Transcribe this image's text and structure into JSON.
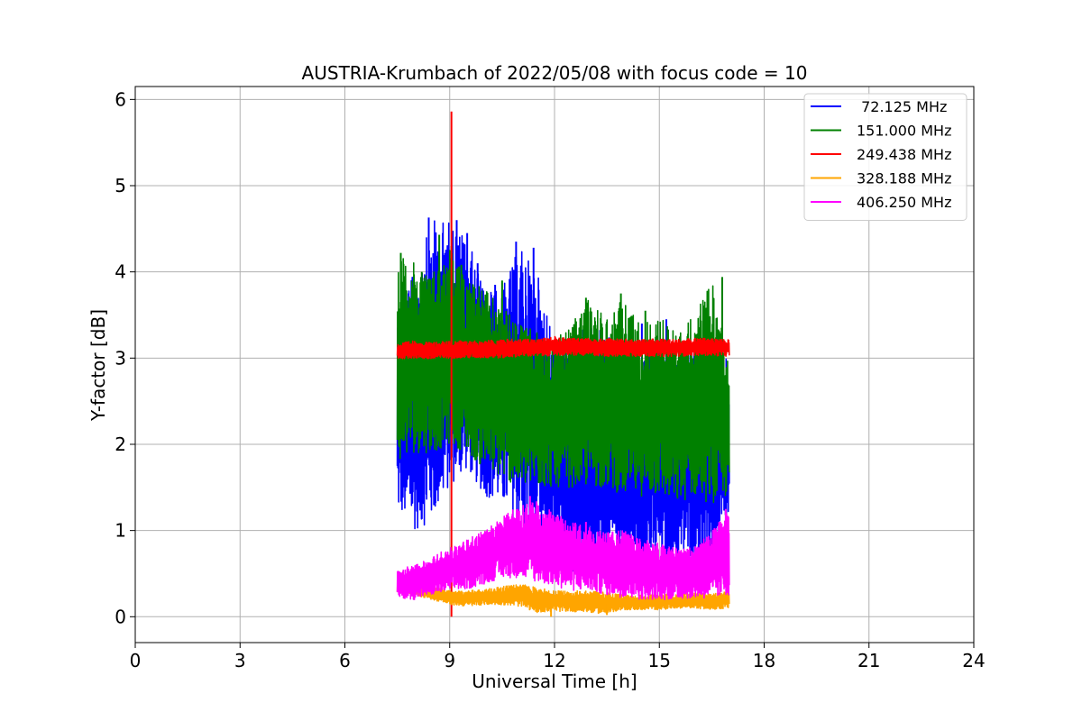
{
  "chart_data": {
    "type": "line",
    "title": "AUSTRIA-Krumbach of 2022/05/08 with focus code = 10",
    "xlabel": "Universal Time [h]",
    "ylabel": "Y-factor [dB]",
    "xlim": [
      0,
      24
    ],
    "ylim": [
      -0.3,
      6.15
    ],
    "xticks": [
      "0",
      "3",
      "6",
      "9",
      "12",
      "15",
      "18",
      "21",
      "24"
    ],
    "yticks": [
      "0",
      "1",
      "2",
      "3",
      "4",
      "5",
      "6"
    ],
    "grid": true,
    "legend_position": "top-right",
    "series": [
      {
        "name": " 72.125 MHz",
        "color": "#0000ff",
        "x": [
          7.5,
          8.0,
          8.5,
          9.0,
          9.5,
          10.0,
          10.5,
          11.0,
          11.5,
          12.0,
          12.5,
          13.0,
          13.5,
          14.0,
          14.5,
          15.0,
          15.5,
          16.0,
          16.5,
          17.0
        ],
        "low": [
          1.2,
          1.0,
          1.1,
          1.5,
          1.7,
          1.4,
          1.3,
          1.0,
          0.9,
          0.6,
          0.5,
          0.5,
          0.6,
          0.5,
          0.6,
          0.6,
          0.6,
          0.7,
          0.6,
          1.0
        ],
        "high": [
          3.6,
          4.0,
          4.6,
          4.6,
          4.4,
          3.8,
          3.8,
          4.3,
          4.0,
          3.2,
          3.2,
          3.4,
          3.3,
          3.1,
          3.0,
          3.3,
          3.0,
          3.1,
          3.0,
          3.0
        ],
        "spikes": [
          [
            8.4,
            4.63
          ],
          [
            9.2,
            4.6
          ],
          [
            9.5,
            4.45
          ],
          [
            10.9,
            4.35
          ],
          [
            11.4,
            4.28
          ],
          [
            7.7,
            3.9
          ],
          [
            8.9,
            4.1
          ],
          [
            9.8,
            4.1
          ],
          [
            10.3,
            3.85
          ],
          [
            14.5,
            3.4
          ],
          [
            15.2,
            3.45
          ],
          [
            16.4,
            3.3
          ]
        ]
      },
      {
        "name": "151.000 MHz",
        "color": "#008000",
        "x": [
          7.5,
          8.0,
          8.5,
          9.0,
          9.5,
          10.0,
          10.5,
          11.0,
          11.5,
          12.0,
          12.5,
          13.0,
          13.5,
          14.0,
          14.5,
          15.0,
          15.5,
          16.0,
          16.5,
          17.0
        ],
        "low": [
          1.8,
          1.9,
          1.9,
          2.0,
          1.9,
          1.7,
          1.6,
          1.5,
          1.5,
          1.5,
          1.5,
          1.5,
          1.5,
          1.4,
          1.4,
          1.4,
          1.3,
          1.4,
          1.3,
          1.4
        ],
        "high": [
          4.2,
          4.1,
          4.0,
          4.3,
          4.0,
          3.8,
          3.6,
          3.4,
          3.3,
          3.2,
          3.4,
          3.7,
          3.5,
          3.7,
          3.4,
          3.5,
          3.3,
          3.5,
          3.9,
          3.0
        ],
        "spikes": [
          [
            7.6,
            4.22
          ],
          [
            8.7,
            4.43
          ],
          [
            9.05,
            4.3
          ],
          [
            12.9,
            3.7
          ],
          [
            13.9,
            3.75
          ],
          [
            14.6,
            3.55
          ],
          [
            16.8,
            3.94
          ],
          [
            10.5,
            3.9
          ],
          [
            8.2,
            4.0
          ]
        ]
      },
      {
        "name": "249.438 MHz",
        "color": "#ff0000",
        "x": [
          7.5,
          8.0,
          8.5,
          9.0,
          9.5,
          10.0,
          10.5,
          11.0,
          11.5,
          12.0,
          12.5,
          13.0,
          13.5,
          14.0,
          14.5,
          15.0,
          15.5,
          16.0,
          16.5,
          17.0
        ],
        "low": [
          2.99,
          3.0,
          2.98,
          3.0,
          3.0,
          3.0,
          3.0,
          3.02,
          3.02,
          3.03,
          3.03,
          3.03,
          3.02,
          3.02,
          3.02,
          3.02,
          3.02,
          3.03,
          3.03,
          3.02
        ],
        "high": [
          3.17,
          3.2,
          3.18,
          3.2,
          3.2,
          3.2,
          3.22,
          3.22,
          3.22,
          3.25,
          3.23,
          3.23,
          3.23,
          3.22,
          3.22,
          3.22,
          3.22,
          3.23,
          3.23,
          3.22
        ],
        "spikes": [
          [
            9.05,
            5.86
          ],
          [
            9.05,
            0.0
          ]
        ]
      },
      {
        "name": "328.188 MHz",
        "color": "#ffa500",
        "x": [
          7.5,
          8.0,
          8.5,
          9.0,
          9.5,
          10.0,
          10.5,
          11.0,
          11.5,
          12.0,
          12.5,
          13.0,
          13.5,
          14.0,
          14.5,
          15.0,
          15.5,
          16.0,
          16.5,
          17.0
        ],
        "low": [
          0.28,
          0.25,
          0.2,
          0.14,
          0.12,
          0.14,
          0.14,
          0.12,
          0.05,
          0.06,
          0.06,
          0.05,
          0.03,
          0.08,
          0.08,
          0.08,
          0.1,
          0.1,
          0.08,
          0.1
        ],
        "high": [
          0.45,
          0.4,
          0.35,
          0.3,
          0.3,
          0.32,
          0.35,
          0.38,
          0.34,
          0.3,
          0.3,
          0.3,
          0.28,
          0.25,
          0.25,
          0.26,
          0.27,
          0.28,
          0.26,
          0.3
        ],
        "spikes": [
          [
            11.9,
            0.0
          ],
          [
            13.5,
            0.02
          ]
        ]
      },
      {
        "name": "406.250 MHz",
        "color": "#ff00ff",
        "x": [
          7.5,
          8.0,
          8.5,
          9.0,
          9.5,
          10.0,
          10.5,
          11.0,
          11.5,
          12.0,
          12.5,
          13.0,
          13.5,
          14.0,
          14.5,
          15.0,
          15.5,
          16.0,
          16.5,
          17.0
        ],
        "low": [
          0.22,
          0.2,
          0.25,
          0.3,
          0.32,
          0.38,
          0.45,
          0.45,
          0.4,
          0.35,
          0.3,
          0.3,
          0.25,
          0.22,
          0.2,
          0.2,
          0.2,
          0.22,
          0.2,
          0.25
        ],
        "high": [
          0.55,
          0.6,
          0.7,
          0.8,
          0.9,
          1.0,
          1.15,
          1.3,
          1.35,
          1.2,
          1.1,
          1.05,
          1.0,
          1.0,
          0.9,
          0.85,
          0.8,
          0.8,
          1.0,
          1.25
        ],
        "spikes": [
          [
            11.3,
            1.4
          ],
          [
            12.9,
            1.1
          ],
          [
            16.9,
            1.25
          ]
        ]
      }
    ]
  }
}
